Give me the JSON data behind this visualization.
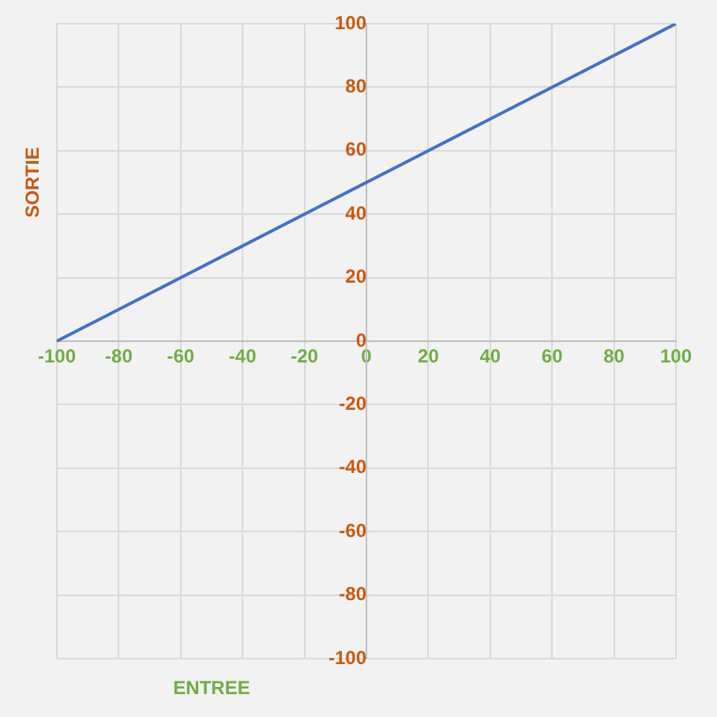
{
  "chart_data": {
    "type": "line",
    "xlabel": "ENTREE",
    "ylabel": "SORTIE",
    "x": [
      -100,
      100
    ],
    "series": [
      {
        "color": "#4472c4",
        "values": [
          0,
          100
        ]
      }
    ],
    "xlim": [
      -100,
      100
    ],
    "xticks": [
      -100,
      -80,
      -60,
      -40,
      -20,
      0,
      20,
      40,
      60,
      80,
      100
    ],
    "ylim": [
      -100,
      100
    ],
    "yticks": [
      -100,
      -80,
      -60,
      -40,
      -20,
      0,
      20,
      40,
      60,
      80,
      100
    ],
    "grid": true,
    "legend": false,
    "marker": "none",
    "line_style": "solid"
  }
}
